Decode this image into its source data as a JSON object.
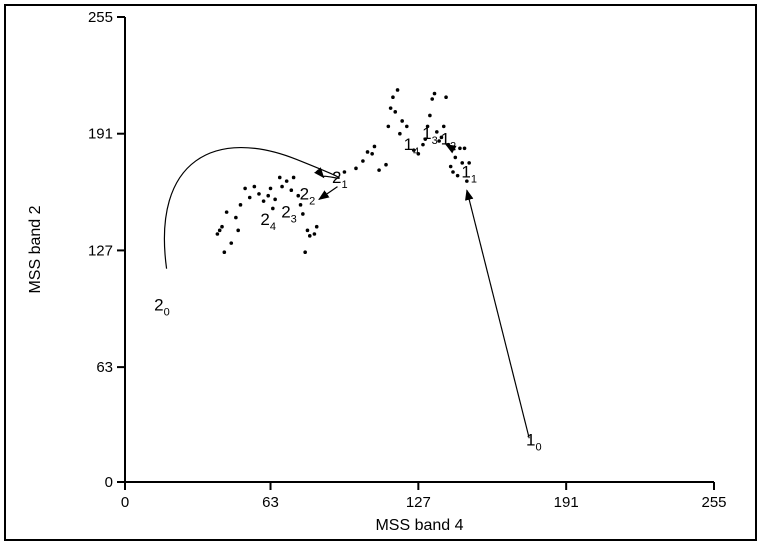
{
  "chart_data": {
    "type": "scatter",
    "title": "",
    "xlabel": "MSS band 4",
    "ylabel": "MSS band 2",
    "xlim": [
      0,
      255
    ],
    "ylim": [
      0,
      255
    ],
    "x_ticks": [
      "0",
      "63",
      "127",
      "191",
      "255"
    ],
    "y_ticks": [
      "0",
      "63",
      "127",
      "191",
      "255"
    ],
    "grid": false,
    "series": [
      {
        "values": [
          [
            40,
            136
          ],
          [
            41,
            138
          ],
          [
            42,
            140
          ],
          [
            43,
            126
          ],
          [
            44,
            148
          ],
          [
            46,
            131
          ],
          [
            48,
            145
          ],
          [
            49,
            138
          ],
          [
            50,
            152
          ],
          [
            52,
            161
          ],
          [
            54,
            156
          ],
          [
            56,
            162
          ],
          [
            58,
            158
          ],
          [
            60,
            154
          ],
          [
            62,
            157
          ],
          [
            63,
            161
          ],
          [
            64,
            150
          ],
          [
            65,
            155
          ],
          [
            67,
            167
          ],
          [
            68,
            162
          ],
          [
            70,
            165
          ],
          [
            72,
            160
          ],
          [
            73,
            167
          ],
          [
            75,
            157
          ],
          [
            76,
            152
          ],
          [
            77,
            147
          ],
          [
            78,
            126
          ],
          [
            79,
            138
          ],
          [
            80,
            135
          ],
          [
            82,
            136
          ],
          [
            83,
            140
          ],
          [
            95,
            170
          ],
          [
            100,
            172
          ],
          [
            103,
            176
          ],
          [
            105,
            181
          ],
          [
            107,
            180
          ],
          [
            108,
            184
          ],
          [
            110,
            171
          ],
          [
            113,
            174
          ],
          [
            114,
            195
          ],
          [
            115,
            205
          ],
          [
            116,
            211
          ],
          [
            117,
            203
          ],
          [
            118,
            215
          ],
          [
            119,
            191
          ],
          [
            120,
            198
          ],
          [
            122,
            195
          ],
          [
            125,
            182
          ],
          [
            127,
            180
          ],
          [
            129,
            185
          ],
          [
            130,
            188
          ],
          [
            131,
            195
          ],
          [
            132,
            201
          ],
          [
            133,
            210
          ],
          [
            134,
            213
          ],
          [
            135,
            192
          ],
          [
            136,
            187
          ],
          [
            137,
            189
          ],
          [
            138,
            195
          ],
          [
            139,
            211
          ],
          [
            140,
            185
          ],
          [
            141,
            173
          ],
          [
            142,
            170
          ],
          [
            143,
            178
          ],
          [
            144,
            168
          ],
          [
            145,
            183
          ],
          [
            146,
            175
          ],
          [
            147,
            183
          ],
          [
            148,
            165
          ],
          [
            149,
            175
          ]
        ]
      }
    ],
    "annotations": [
      {
        "base": "2",
        "sub": "0",
        "x": 16,
        "y": 94
      },
      {
        "base": "2",
        "sub": "1",
        "x": 93,
        "y": 164
      },
      {
        "base": "2",
        "sub": "2",
        "x": 79,
        "y": 155
      },
      {
        "base": "2",
        "sub": "3",
        "x": 71,
        "y": 145
      },
      {
        "base": "2",
        "sub": "4",
        "x": 62,
        "y": 141
      },
      {
        "base": "1",
        "sub": "0",
        "x": 177,
        "y": 20
      },
      {
        "base": "1",
        "sub": "1",
        "x": 149,
        "y": 167
      },
      {
        "base": "1",
        "sub": "2",
        "x": 140,
        "y": 185
      },
      {
        "base": "1",
        "sub": "3",
        "x": 132,
        "y": 188
      },
      {
        "base": "1",
        "sub": "4",
        "x": 124,
        "y": 182
      }
    ],
    "arrows": [
      {
        "from": [
          18,
          117
        ],
        "to": [
          86,
          167
        ],
        "curve": "arc"
      },
      {
        "from": [
          92,
          162
        ],
        "to": [
          84,
          155
        ],
        "curve": "straight"
      },
      {
        "from": [
          175,
          24
        ],
        "to": [
          148,
          160
        ],
        "curve": "straight"
      },
      {
        "from": [
          143,
          182
        ],
        "to": [
          139,
          185
        ],
        "curve": "straight"
      }
    ]
  }
}
